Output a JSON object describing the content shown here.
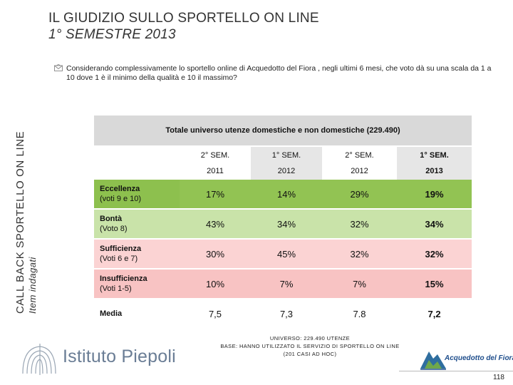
{
  "header": {
    "title_line1": "IL GIUDIZIO SULLO SPORTELLO ON LINE",
    "title_line2": "1° SEMESTRE 2013"
  },
  "side": {
    "line1": "CALL BACK SPORTELLO ON LINE",
    "line2": "Item indagati"
  },
  "question": "Considerando complessivamente lo sportello online di Acquedotto del Fiora , negli ultimi 6 mesi, che voto dà su una scala da 1 a 10 dove 1 è il minimo della qualità e 10 il massimo?",
  "table": {
    "title": "Totale universo utenze domestiche e non domestiche (229.490)",
    "columns": [
      {
        "line1": "2° SEM.",
        "line2": "2011"
      },
      {
        "line1": "1° SEM.",
        "line2": "2012"
      },
      {
        "line1": "2° SEM.",
        "line2": "2012"
      },
      {
        "line1": "1° SEM.",
        "line2": "2013"
      }
    ],
    "rows": [
      {
        "label": "Eccellenza",
        "sub": "(voti 9 e 10)",
        "values": [
          "17%",
          "14%",
          "29%",
          "19%"
        ]
      },
      {
        "label": "Bontà",
        "sub": "(Voto 8)",
        "values": [
          "43%",
          "34%",
          "32%",
          "34%"
        ]
      },
      {
        "label": "Sufficienza",
        "sub": "(Voti 6 e 7)",
        "values": [
          "30%",
          "45%",
          "32%",
          "32%"
        ]
      },
      {
        "label": "Insufficienza",
        "sub": "(Voti 1-5)",
        "values": [
          "10%",
          "7%",
          "7%",
          "15%"
        ]
      },
      {
        "label": "Media",
        "sub": "",
        "values": [
          "7,5",
          "7,3",
          "7.8",
          "7,2"
        ]
      }
    ]
  },
  "footnote": {
    "line1": "UNIVERSO: 229.490 UTENZE",
    "line2": "BASE: HANNO UTILIZZATO IL SERVIZIO DI SPORTELLO ON LINE",
    "line3": "(201 CASI AD HOC)"
  },
  "logo_left": "Istituto Piepoli",
  "logo_right": "Acquedotto del Fiora",
  "page_number": "118",
  "colors": {
    "eccellenza": "#92c353",
    "bonta": "#c9e3a9",
    "sufficienza": "#fbd3d3",
    "insufficienza": "#f8c3c3",
    "header_gray": "#d9d9d9"
  }
}
